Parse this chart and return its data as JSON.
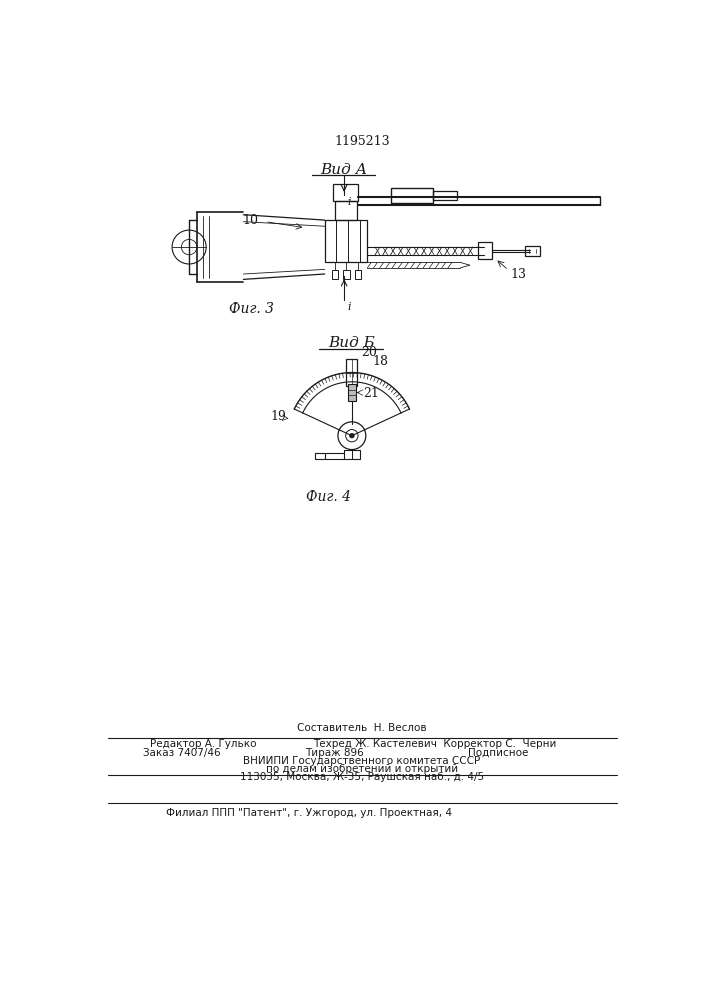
{
  "title": "1195213",
  "fig3_label": "Вид А",
  "fig4_label": "Вид Б",
  "fig3_caption": "Фиг. 3",
  "fig4_caption": "Фиг. 4",
  "label_10": "10",
  "label_13": "13",
  "label_19": "19",
  "label_20": "20",
  "label_18": "18",
  "label_21": "21",
  "footer_line1": "Составитель  Н. Веслов",
  "footer_line2_left": "Редактор А. Гулько",
  "footer_line2_center": "Техред Ж. Кастелевич  Корректор С.  Черни",
  "footer_line3a": "Заказ 7407/46",
  "footer_line3b": "Тираж 896",
  "footer_line3c": "Подписное",
  "footer_line4": "ВНИИПИ Государственного комитета СССР",
  "footer_line5": "по делам изобретений и открытий",
  "footer_line6": "113035, Москва, Ж-35, Раушская наб., д. 4/5",
  "footer_line7": "Филиал ППП \"Патент\", г. Ужгород, ул. Проектная, 4",
  "bg_color": "#ffffff",
  "line_color": "#1a1a1a"
}
